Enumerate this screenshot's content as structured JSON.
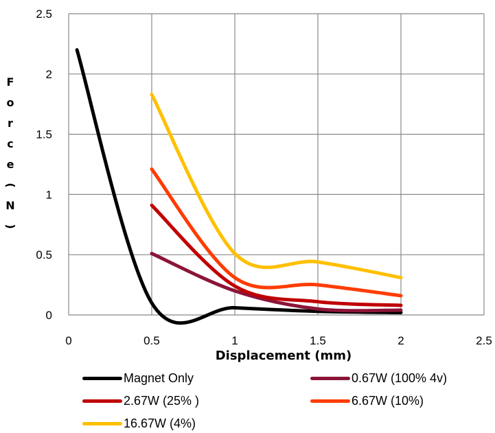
{
  "chart_data": {
    "type": "line",
    "title": "",
    "xlabel": "Displacement (mm)",
    "ylabel": "Force (N)",
    "xlim": [
      0,
      2.5
    ],
    "ylim": [
      0,
      2.5
    ],
    "x_ticks": [
      "0",
      "0.5",
      "1",
      "1.5",
      "2",
      "2.5"
    ],
    "y_ticks": [
      "0",
      "0.5",
      "1",
      "1.5",
      "2",
      "2.5"
    ],
    "grid": true,
    "legend_position": "bottom",
    "series": [
      {
        "name": "Magnet Only",
        "color": "#000000",
        "x": [
          0.05,
          0.5,
          1,
          1.5,
          2
        ],
        "y": [
          2.2,
          0.1,
          0.06,
          0.03,
          0.02
        ]
      },
      {
        "name": "0.67W (100% 4v)",
        "color": "#8B1538",
        "x": [
          0.5,
          1,
          1.5,
          2
        ],
        "y": [
          0.51,
          0.2,
          0.05,
          0.04
        ]
      },
      {
        "name": "2.67W (25% )",
        "color": "#C00000",
        "x": [
          0.5,
          1,
          1.5,
          2
        ],
        "y": [
          0.91,
          0.24,
          0.11,
          0.08
        ]
      },
      {
        "name": "6.67W (10%)",
        "color": "#FF3C00",
        "x": [
          0.5,
          1,
          1.5,
          2
        ],
        "y": [
          1.21,
          0.31,
          0.25,
          0.16
        ]
      },
      {
        "name": "16.67W (4%)",
        "color": "#FFC000",
        "x": [
          0.5,
          1,
          1.5,
          2
        ],
        "y": [
          1.83,
          0.51,
          0.44,
          0.31
        ]
      }
    ]
  }
}
